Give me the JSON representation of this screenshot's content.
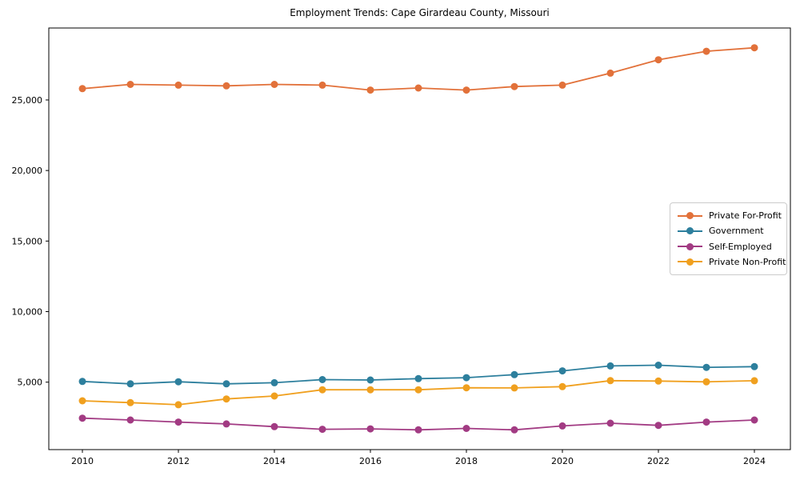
{
  "chart_data": {
    "type": "line",
    "title": "Employment Trends: Cape Girardeau County, Missouri",
    "xlabel": "",
    "ylabel": "",
    "x": [
      2010,
      2011,
      2012,
      2013,
      2014,
      2015,
      2016,
      2017,
      2018,
      2019,
      2020,
      2021,
      2022,
      2023,
      2024
    ],
    "series": [
      {
        "name": "Private For-Profit",
        "color": "#e2713a",
        "values": [
          25800,
          26100,
          26050,
          26000,
          26100,
          26050,
          25700,
          25850,
          25700,
          25950,
          26050,
          26900,
          27850,
          28450,
          28700
        ]
      },
      {
        "name": "Government",
        "color": "#2d7f9d",
        "values": [
          5050,
          4880,
          5030,
          4880,
          4960,
          5180,
          5150,
          5250,
          5320,
          5530,
          5800,
          6150,
          6200,
          6050,
          6100
        ]
      },
      {
        "name": "Self-Employed",
        "color": "#a23b83",
        "values": [
          2450,
          2320,
          2170,
          2040,
          1850,
          1660,
          1690,
          1620,
          1720,
          1620,
          1900,
          2090,
          1940,
          2170,
          2320
        ]
      },
      {
        "name": "Private Non-Profit",
        "color": "#f0a01f",
        "values": [
          3680,
          3550,
          3400,
          3810,
          4020,
          4460,
          4460,
          4460,
          4600,
          4590,
          4680,
          5110,
          5080,
          5020,
          5100
        ]
      }
    ],
    "xticks": [
      2010,
      2012,
      2014,
      2016,
      2018,
      2020,
      2022,
      2024
    ],
    "xtick_labels": [
      "2010",
      "2012",
      "2014",
      "2016",
      "2018",
      "2020",
      "2022",
      "2024"
    ],
    "yticks": [
      5000,
      10000,
      15000,
      20000,
      25000
    ],
    "ytick_labels": [
      "5,000",
      "10,000",
      "15,000",
      "20,000",
      "25,000"
    ],
    "xlim": [
      2009.3,
      2024.75
    ],
    "ylim": [
      220,
      30100
    ],
    "grid": false,
    "legend_position": "center-right",
    "frame_color": "#000000"
  }
}
